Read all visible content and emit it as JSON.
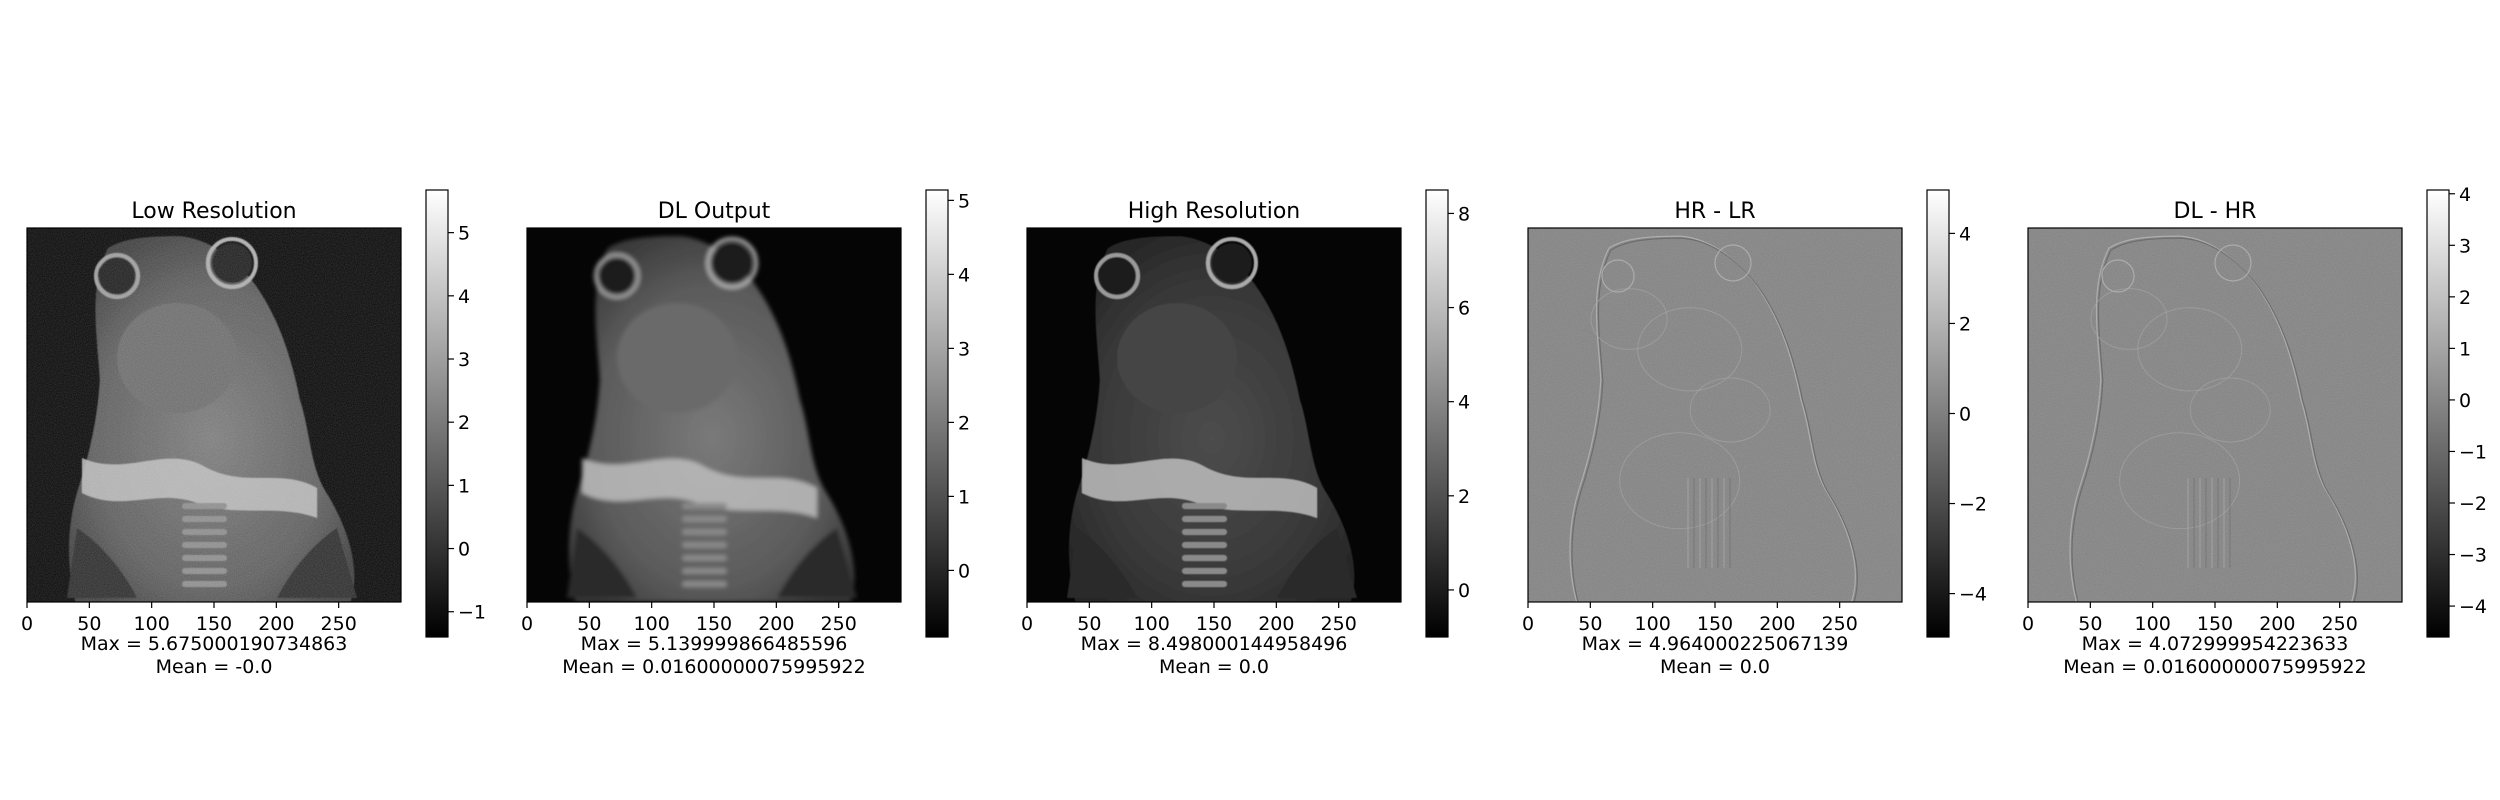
{
  "panels": [
    {
      "title": "Low Resolution",
      "image_kind": "mri-lowres",
      "xticks": [
        "0",
        "50",
        "100",
        "150",
        "200",
        "250"
      ],
      "xtick_values": [
        0,
        50,
        100,
        150,
        200,
        250
      ],
      "x_range": [
        0,
        300
      ],
      "colorbar": {
        "min": -1.4,
        "max": 5.675,
        "ticks": [
          -1,
          0,
          1,
          2,
          3,
          4,
          5
        ],
        "tick_labels": [
          "−1",
          "0",
          "1",
          "2",
          "3",
          "4",
          "5"
        ]
      },
      "max_text": "Max = 5.675000190734863",
      "mean_text": "Mean = -0.0"
    },
    {
      "title": "DL Output",
      "image_kind": "mri-smooth",
      "xticks": [
        "0",
        "50",
        "100",
        "150",
        "200",
        "250"
      ],
      "xtick_values": [
        0,
        50,
        100,
        150,
        200,
        250
      ],
      "x_range": [
        0,
        300
      ],
      "colorbar": {
        "min": -0.9,
        "max": 5.14,
        "ticks": [
          0,
          1,
          2,
          3,
          4,
          5
        ],
        "tick_labels": [
          "0",
          "1",
          "2",
          "3",
          "4",
          "5"
        ]
      },
      "max_text": "Max = 5.139999866485596",
      "mean_text": "Mean = 0.01600000075995922"
    },
    {
      "title": "High Resolution",
      "image_kind": "mri-highres",
      "xticks": [
        "0",
        "50",
        "100",
        "150",
        "200",
        "250"
      ],
      "xtick_values": [
        0,
        50,
        100,
        150,
        200,
        250
      ],
      "x_range": [
        0,
        300
      ],
      "colorbar": {
        "min": -1.0,
        "max": 8.498,
        "ticks": [
          0,
          2,
          4,
          6,
          8
        ],
        "tick_labels": [
          "0",
          "2",
          "4",
          "6",
          "8"
        ]
      },
      "max_text": "Max = 8.498000144958496",
      "mean_text": "Mean = 0.0"
    },
    {
      "title": "HR - LR",
      "image_kind": "difference",
      "xticks": [
        "0",
        "50",
        "100",
        "150",
        "200",
        "250"
      ],
      "xtick_values": [
        0,
        50,
        100,
        150,
        200,
        250
      ],
      "x_range": [
        0,
        300
      ],
      "colorbar": {
        "min": -4.964,
        "max": 4.964,
        "ticks": [
          -4,
          -2,
          0,
          2,
          4
        ],
        "tick_labels": [
          "−4",
          "−2",
          "0",
          "2",
          "4"
        ]
      },
      "max_text": "Max = 4.964000225067139",
      "mean_text": "Mean = 0.0"
    },
    {
      "title": "DL - HR",
      "image_kind": "difference",
      "xticks": [
        "0",
        "50",
        "100",
        "150",
        "200",
        "250"
      ],
      "xtick_values": [
        0,
        50,
        100,
        150,
        200,
        250
      ],
      "x_range": [
        0,
        300
      ],
      "colorbar": {
        "min": -4.6,
        "max": 4.073,
        "ticks": [
          -4,
          -3,
          -2,
          -1,
          0,
          1,
          2,
          3,
          4
        ],
        "tick_labels": [
          "−4",
          "−3",
          "−2",
          "−1",
          "0",
          "1",
          "2",
          "3",
          "4"
        ]
      },
      "max_text": "Max = 4.072999954223633",
      "mean_text": "Mean = 0.01600000075995922"
    }
  ],
  "colors": {
    "background": "#ffffff",
    "axis": "#000000",
    "diff_gray": "#808080",
    "dark_bg": "#050505"
  }
}
